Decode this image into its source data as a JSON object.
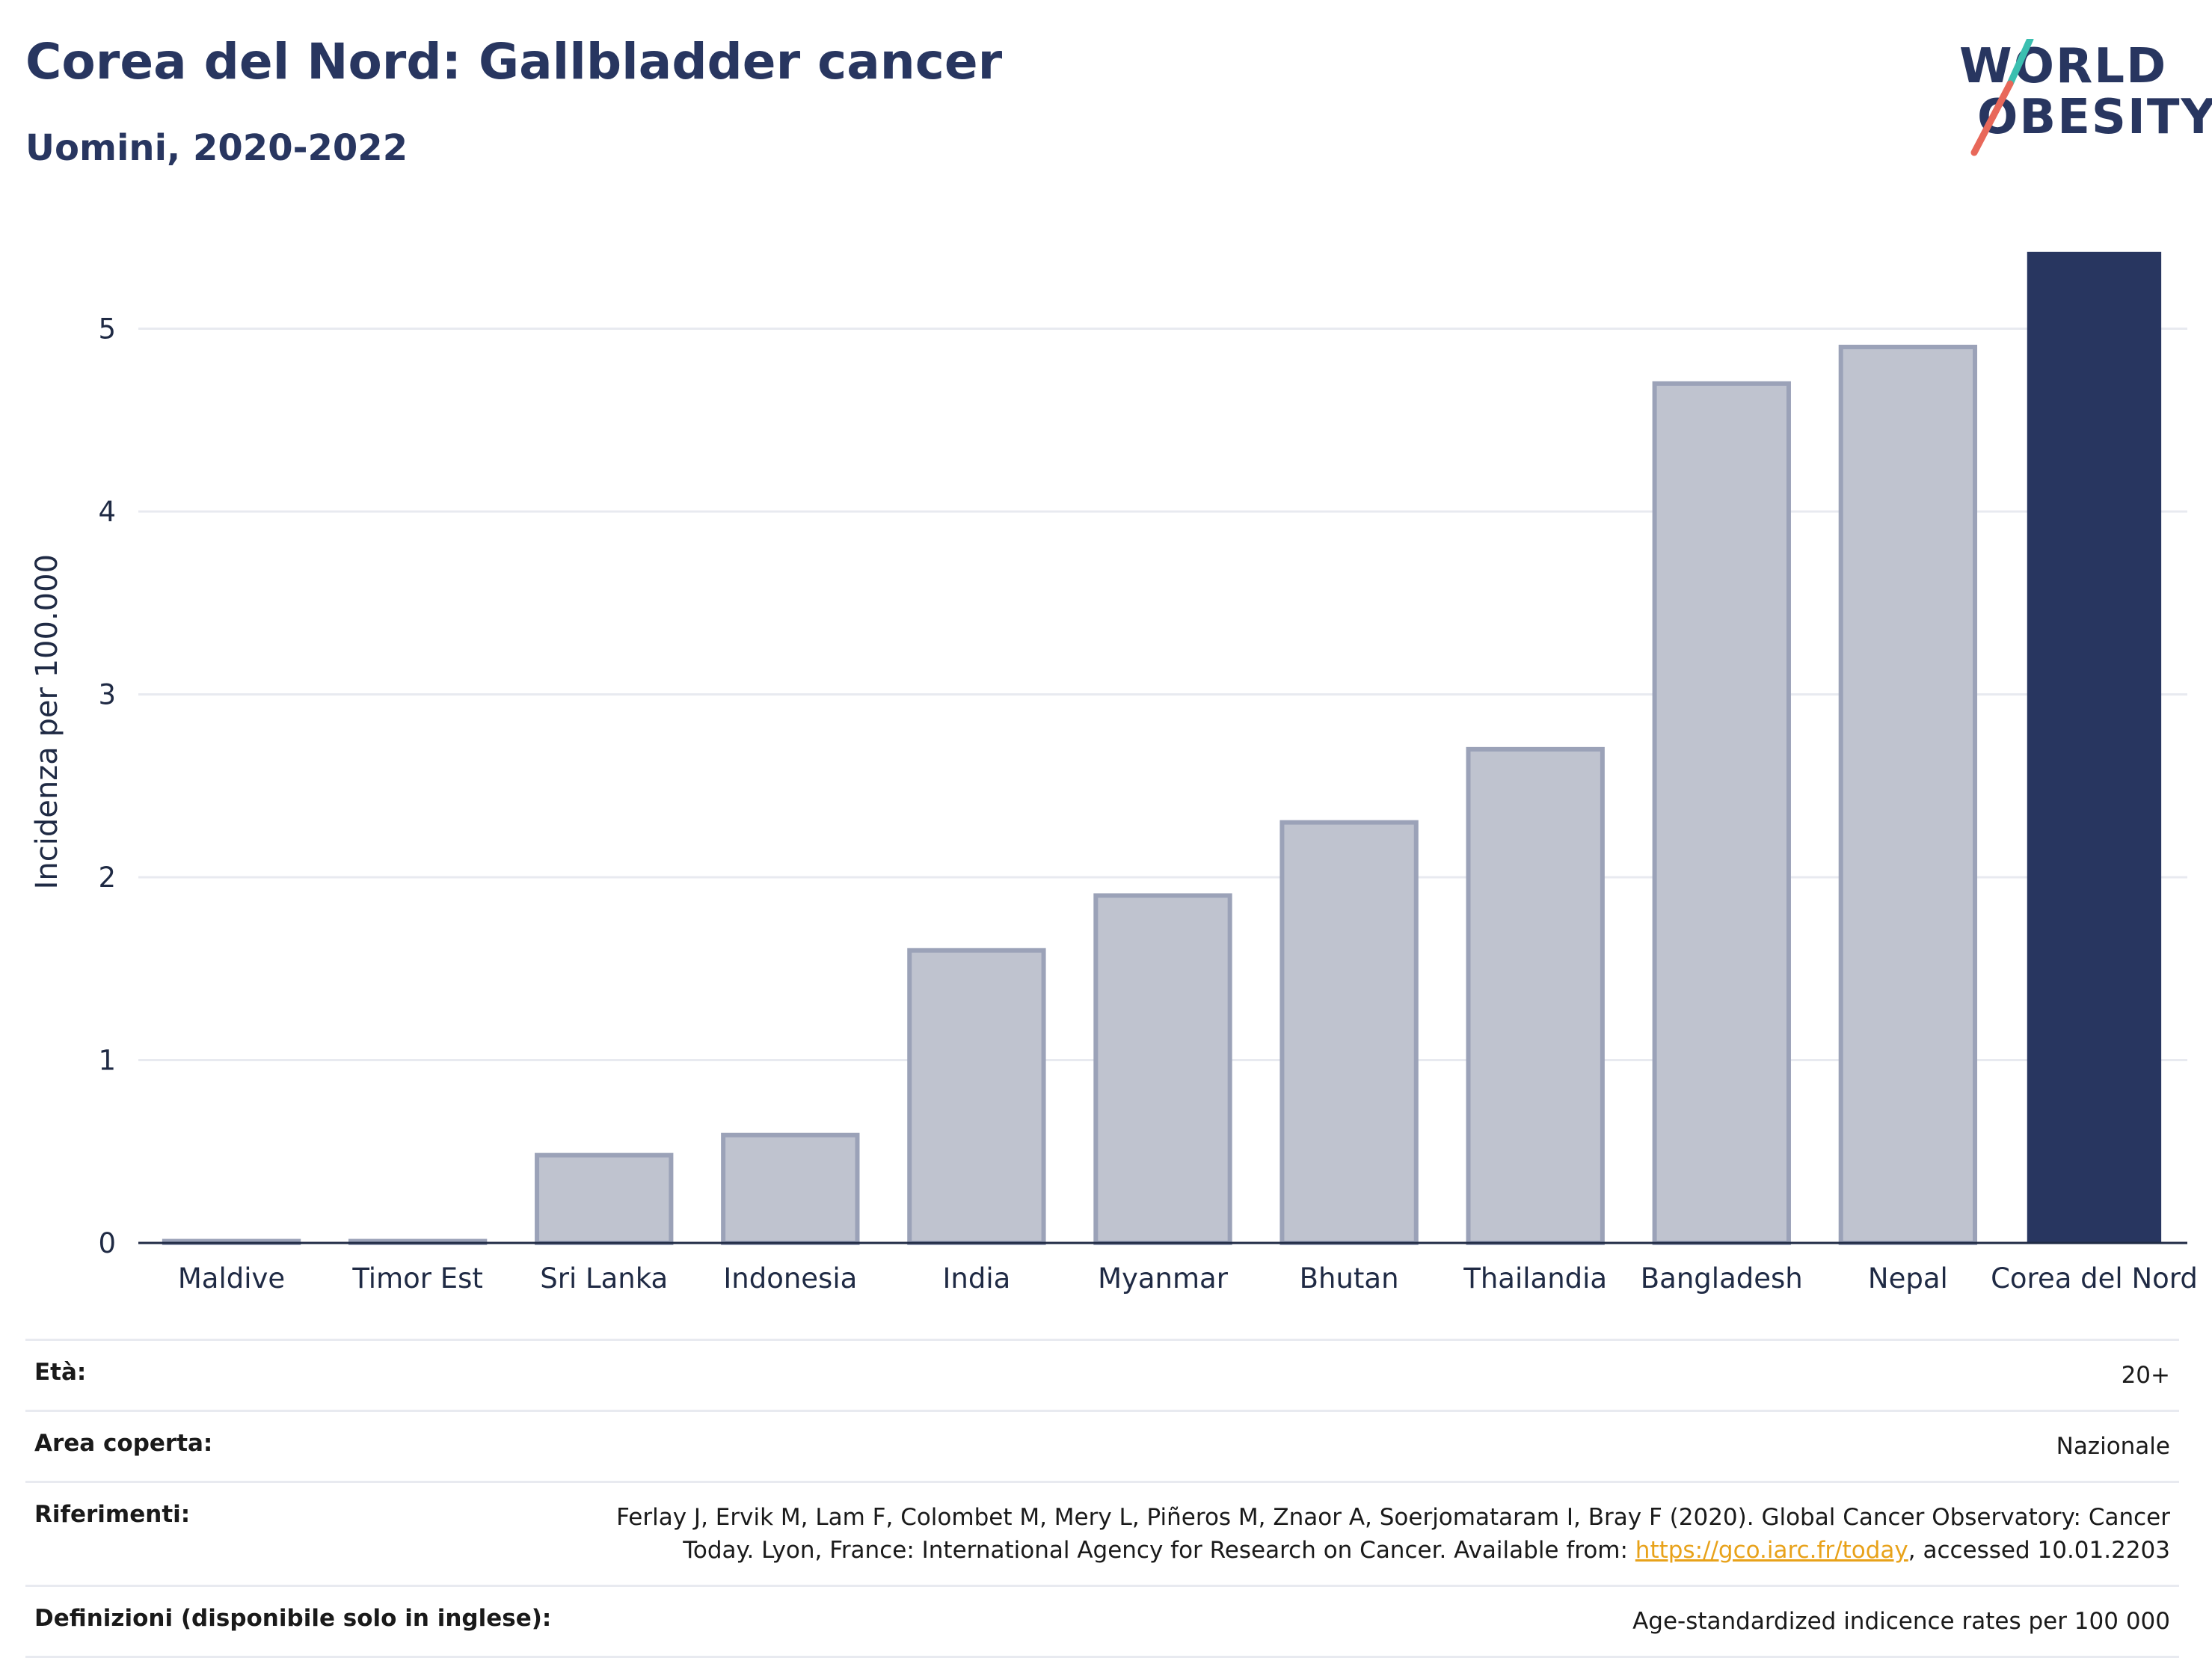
{
  "header": {
    "title": "Corea del Nord: Gallbladder cancer",
    "subtitle": "Uomini, 2020-2022"
  },
  "logo": {
    "line1": "WORLD",
    "line2": "OBESITY",
    "slash_colors": [
      "#3bbfb0",
      "#e8685a"
    ]
  },
  "chart_data": {
    "type": "bar",
    "categories": [
      "Maldive",
      "Timor Est",
      "Sri Lanka",
      "Indonesia",
      "India",
      "Myanmar",
      "Bhutan",
      "Thailandia",
      "Bangladesh",
      "Nepal",
      "Corea del Nord"
    ],
    "values": [
      0.01,
      0.01,
      0.48,
      0.59,
      1.6,
      1.9,
      2.3,
      2.7,
      4.7,
      4.9,
      5.42
    ],
    "highlight_category": "Corea del Nord",
    "ylabel": "Incidenza per 100.000",
    "xlabel": "",
    "ylim": [
      0,
      5.6
    ],
    "yticks": [
      0,
      1,
      2,
      3,
      4,
      5
    ],
    "grid": true,
    "colors": {
      "bar": "#bfc3cf",
      "bar_border": "#9ba2b8",
      "highlight": "#283660",
      "grid": "#e8eaf0",
      "axis": "#1f2a44"
    }
  },
  "info": {
    "rows": [
      {
        "label": "Età:",
        "value": "20+"
      },
      {
        "label": "Area coperta:",
        "value": "Nazionale"
      },
      {
        "label": "Riferimenti:",
        "value_before": "Ferlay J, Ervik M, Lam F, Colombet M, Mery L, Piñeros M, Znaor A, Soerjomataram I, Bray F (2020). Global Cancer Observatory: Cancer Today. Lyon, France: International Agency for Research on Cancer. Available from: ",
        "link": "https://gco.iarc.fr/today",
        "value_after": ", accessed 10.01.2203"
      },
      {
        "label": "Definizioni (disponibile solo in inglese):",
        "value": "Age-standardized indicence rates per 100 000"
      }
    ]
  }
}
